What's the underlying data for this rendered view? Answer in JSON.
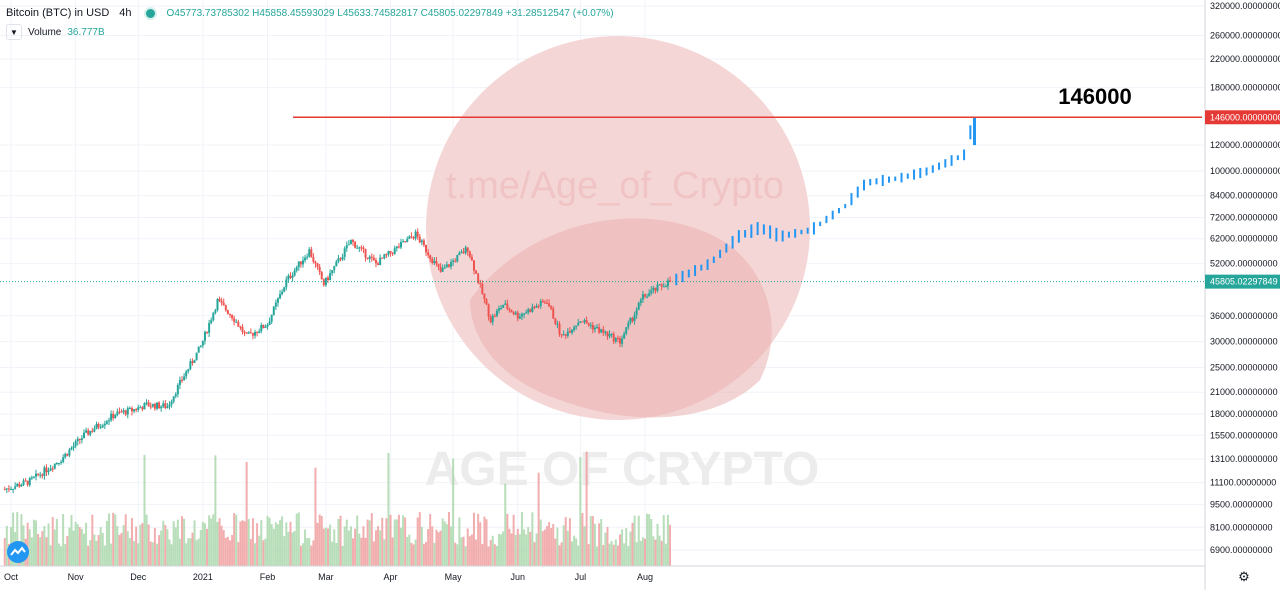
{
  "header": {
    "symbol": "Bitcoin (BTC) in USD",
    "timeframe": "4h",
    "ohlc": "O45773.73785302  H45858.45593029  L45633.74582817  C45805.02297849  +31.28512547  (+0.07%)"
  },
  "volume_legend": {
    "label": "Volume",
    "value": "36.777B"
  },
  "watermark": {
    "channel": "t.me/Age_of_Crypto",
    "brand": "AGE OF CRYPTO"
  },
  "annotation": {
    "target_text": "146000",
    "target_line_label": "146000.00000000"
  },
  "current_price_label": "45805.02297849",
  "colors": {
    "up": "#26a69a",
    "down": "#ef5350",
    "projection": "#2196f3",
    "target_line": "#e53935",
    "current_line": "#26a69a"
  },
  "chart_data": {
    "type": "candlestick",
    "scale": "log",
    "ylim": [
      6000,
      330000
    ],
    "y_ticks": [
      {
        "v": 6900,
        "l": "6900.00000000"
      },
      {
        "v": 8100,
        "l": "8100.00000000"
      },
      {
        "v": 9500,
        "l": "9500.00000000"
      },
      {
        "v": 11100,
        "l": "11100.00000000"
      },
      {
        "v": 13100,
        "l": "13100.00000000"
      },
      {
        "v": 15500,
        "l": "15500.00000000"
      },
      {
        "v": 18000,
        "l": "18000.00000000"
      },
      {
        "v": 21000,
        "l": "21000.00000000"
      },
      {
        "v": 25000,
        "l": "25000.00000000"
      },
      {
        "v": 30000,
        "l": "30000.00000000"
      },
      {
        "v": 36000,
        "l": "36000.00000000"
      },
      {
        "v": 52000,
        "l": "52000.00000000"
      },
      {
        "v": 62000,
        "l": "62000.00000000"
      },
      {
        "v": 72000,
        "l": "72000.00000000"
      },
      {
        "v": 84000,
        "l": "84000.00000000"
      },
      {
        "v": 100000,
        "l": "100000.00000000"
      },
      {
        "v": 120000,
        "l": "120000.00000000"
      },
      {
        "v": 180000,
        "l": "180000.00000000"
      },
      {
        "v": 220000,
        "l": "220000.00000000"
      },
      {
        "v": 260000,
        "l": "260000.00000000"
      },
      {
        "v": 320000,
        "l": "320000.00000000"
      }
    ],
    "x_ticks": [
      "Oct",
      "Nov",
      "Dec",
      "2021",
      "Feb",
      "Mar",
      "Apr",
      "May",
      "Jun",
      "Jul",
      "Aug"
    ],
    "x_tick_dates": [
      "2020-10-01",
      "2020-11-01",
      "2020-12-01",
      "2021-01-01",
      "2021-02-01",
      "2021-03-01",
      "2021-04-01",
      "2021-05-01",
      "2021-06-01",
      "2021-07-01",
      "2021-08-01"
    ],
    "target_level": 146000,
    "current_price": 45805.02297849,
    "price_path": [
      [
        "2020-09-28",
        10600
      ],
      [
        "2020-10-10",
        11200
      ],
      [
        "2020-10-25",
        13100
      ],
      [
        "2020-11-05",
        15500
      ],
      [
        "2020-11-20",
        18000
      ],
      [
        "2020-11-28",
        18500
      ],
      [
        "2020-12-05",
        19200
      ],
      [
        "2020-12-15",
        19000
      ],
      [
        "2020-12-22",
        23000
      ],
      [
        "2020-12-31",
        29000
      ],
      [
        "2021-01-08",
        40000
      ],
      [
        "2021-01-15",
        36000
      ],
      [
        "2021-01-22",
        31000
      ],
      [
        "2021-02-01",
        34000
      ],
      [
        "2021-02-10",
        46000
      ],
      [
        "2021-02-21",
        57000
      ],
      [
        "2021-02-28",
        45000
      ],
      [
        "2021-03-13",
        61000
      ],
      [
        "2021-03-25",
        52000
      ],
      [
        "2021-04-13",
        64000
      ],
      [
        "2021-04-25",
        49000
      ],
      [
        "2021-05-08",
        58000
      ],
      [
        "2021-05-19",
        35000
      ],
      [
        "2021-05-25",
        39000
      ],
      [
        "2021-06-01",
        36000
      ],
      [
        "2021-06-15",
        40000
      ],
      [
        "2021-06-22",
        31000
      ],
      [
        "2021-07-01",
        35000
      ],
      [
        "2021-07-20",
        30000
      ],
      [
        "2021-07-31",
        41000
      ],
      [
        "2021-08-10",
        45000
      ],
      [
        "2021-08-13",
        45805
      ]
    ],
    "projection": [
      [
        "2021-08-16",
        46500
      ],
      [
        "2021-09-01",
        52000
      ],
      [
        "2021-09-15",
        63000
      ],
      [
        "2021-09-25",
        67000
      ],
      [
        "2021-10-05",
        63000
      ],
      [
        "2021-10-20",
        66000
      ],
      [
        "2021-11-05",
        78000
      ],
      [
        "2021-11-15",
        92000
      ],
      [
        "2021-12-01",
        95000
      ],
      [
        "2021-12-15",
        100000
      ],
      [
        "2022-01-01",
        112000
      ],
      [
        "2022-01-06",
        146000
      ]
    ],
    "volume_peak_billion": 180
  }
}
